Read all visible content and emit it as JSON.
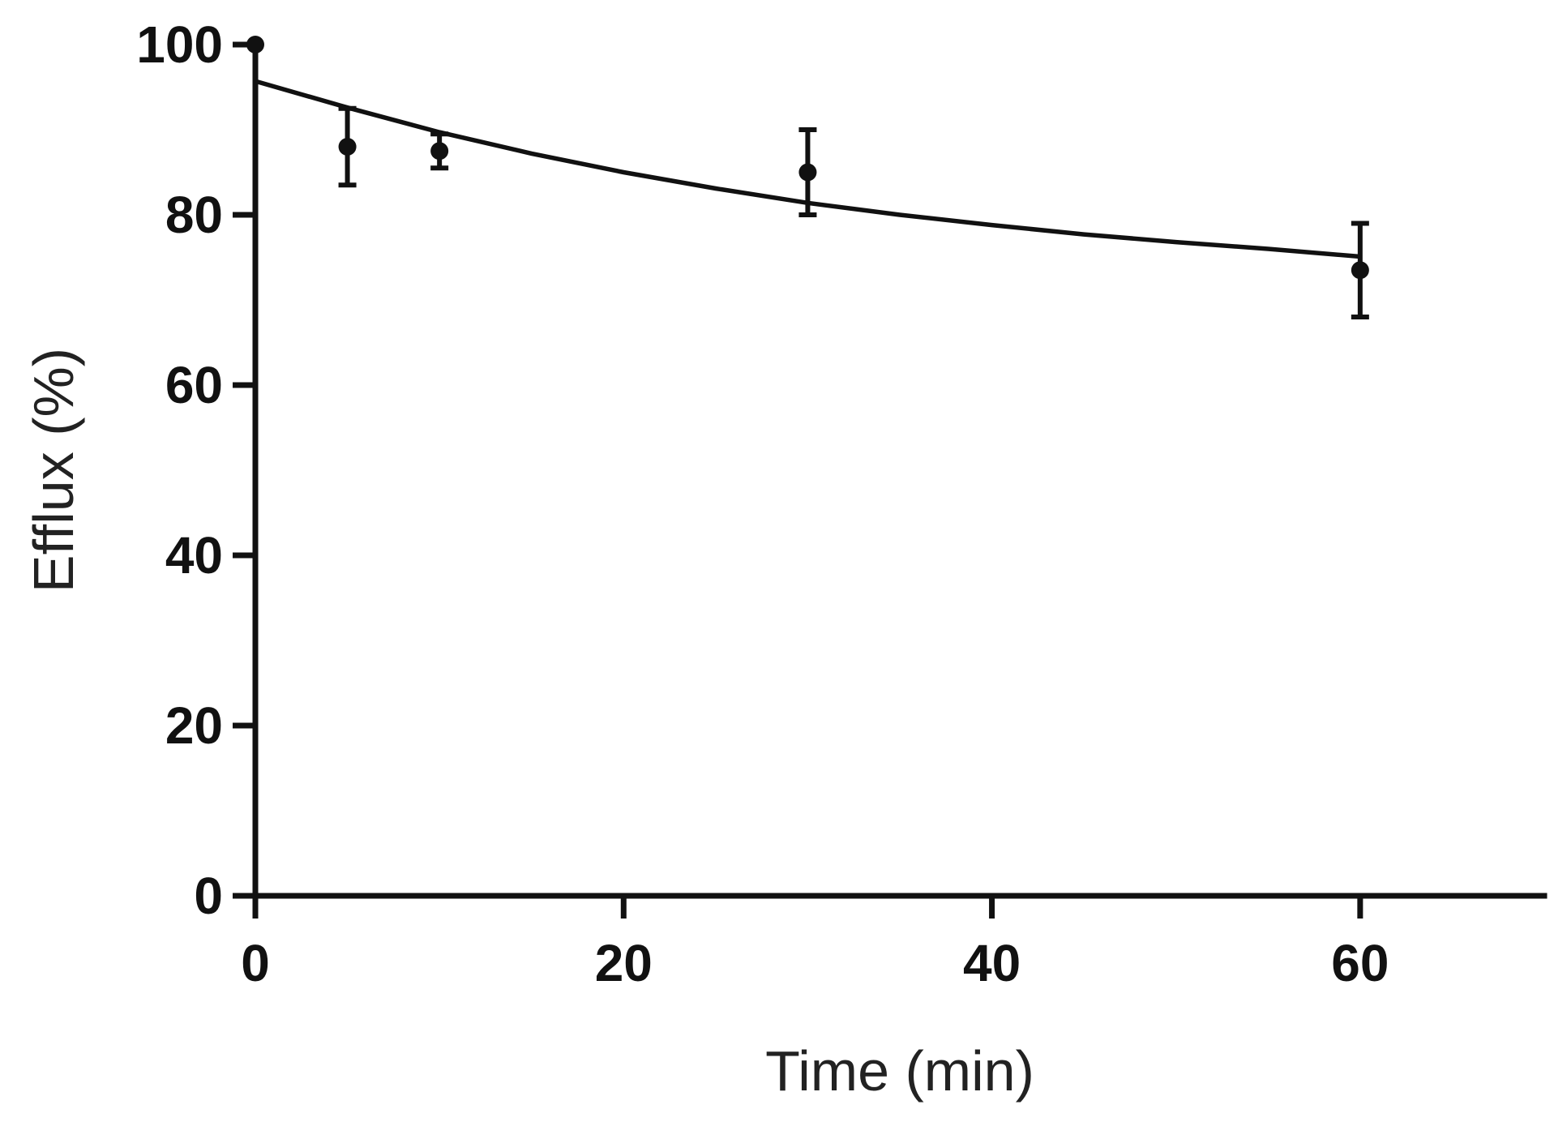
{
  "chart_data": {
    "type": "scatter",
    "title": "",
    "xlabel": "Time (min)",
    "ylabel": "Efflux (%)",
    "xlim": [
      0,
      70
    ],
    "ylim": [
      0,
      100
    ],
    "x_ticks": [
      0,
      20,
      40,
      60
    ],
    "y_ticks": [
      0,
      20,
      40,
      60,
      80,
      100
    ],
    "grid": false,
    "legend": "none",
    "series": [
      {
        "points": [
          {
            "x": 0,
            "y": 100,
            "err": 0
          },
          {
            "x": 5,
            "y": 88,
            "err": 4.5
          },
          {
            "x": 10,
            "y": 87.5,
            "err": 2
          },
          {
            "x": 30,
            "y": 85,
            "err": 5
          },
          {
            "x": 60,
            "y": 73.5,
            "err": 5.5
          }
        ]
      }
    ],
    "fit_curve": [
      {
        "x": 0,
        "y": 95.7
      },
      {
        "x": 5,
        "y": 92.6
      },
      {
        "x": 10,
        "y": 89.7
      },
      {
        "x": 15,
        "y": 87.2
      },
      {
        "x": 20,
        "y": 85.0
      },
      {
        "x": 25,
        "y": 83.1
      },
      {
        "x": 30,
        "y": 81.4
      },
      {
        "x": 35,
        "y": 80.0
      },
      {
        "x": 40,
        "y": 78.8
      },
      {
        "x": 45,
        "y": 77.7
      },
      {
        "x": 50,
        "y": 76.8
      },
      {
        "x": 55,
        "y": 76.0
      },
      {
        "x": 60,
        "y": 75.1
      }
    ]
  }
}
